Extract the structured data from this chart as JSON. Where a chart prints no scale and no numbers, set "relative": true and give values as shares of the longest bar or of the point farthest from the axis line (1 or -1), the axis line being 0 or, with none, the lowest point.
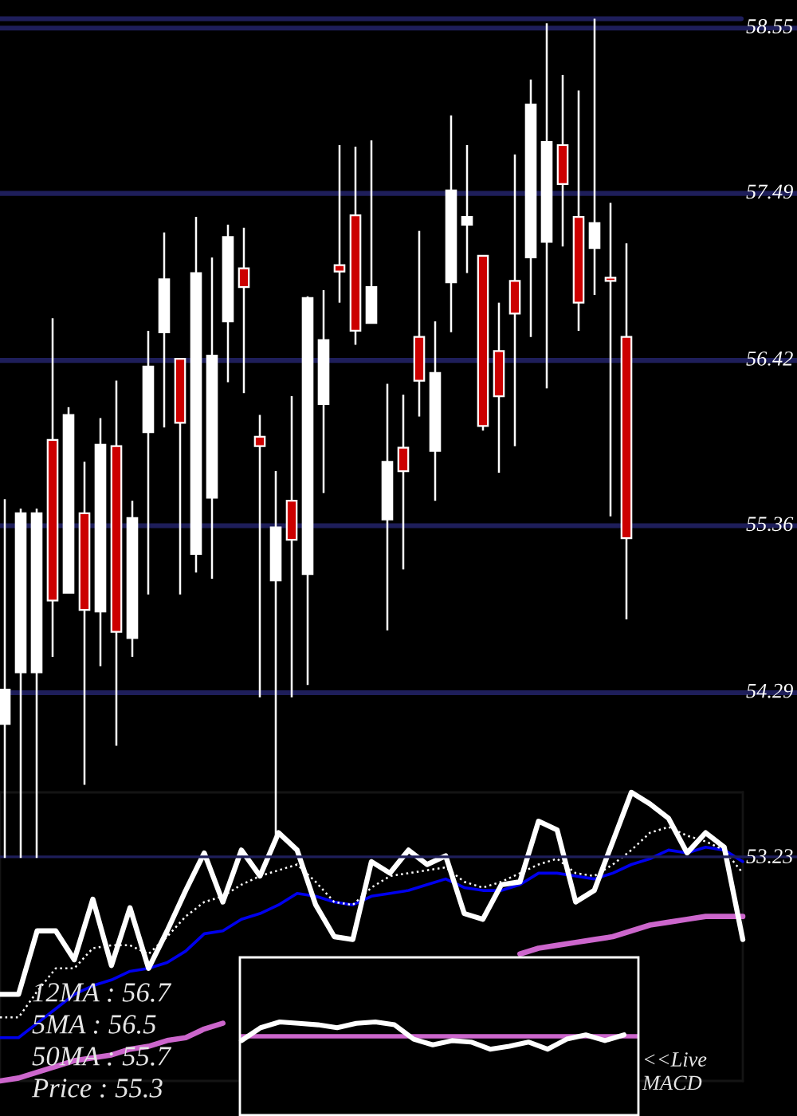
{
  "chart_data": [
    {
      "type": "candlestick",
      "categories": [
        null,
        null,
        null,
        null,
        null,
        null,
        null,
        null,
        null,
        null,
        null,
        null,
        null,
        null,
        null,
        null,
        null,
        null,
        null,
        null,
        null,
        null,
        null,
        null,
        null,
        null,
        null,
        null,
        null,
        null,
        null,
        null,
        null,
        null,
        null,
        null,
        null,
        null,
        null,
        null
      ],
      "ohlc": [
        [
          54.09,
          55.53,
          53.23,
          54.31
        ],
        [
          54.42,
          55.47,
          53.23,
          55.44
        ],
        [
          54.42,
          55.47,
          53.23,
          55.44
        ],
        [
          55.91,
          56.69,
          54.52,
          54.88
        ],
        [
          54.93,
          56.12,
          54.93,
          56.07
        ],
        [
          55.44,
          55.77,
          53.7,
          54.82
        ],
        [
          54.81,
          56.05,
          54.46,
          55.88
        ],
        [
          55.87,
          56.29,
          53.95,
          54.68
        ],
        [
          54.64,
          55.52,
          54.52,
          55.41
        ],
        [
          55.96,
          56.61,
          54.92,
          56.38
        ],
        [
          56.6,
          57.24,
          55.99,
          56.94
        ],
        [
          56.43,
          56.43,
          54.92,
          56.02
        ],
        [
          55.18,
          57.34,
          55.06,
          56.98
        ],
        [
          55.54,
          57.08,
          55.02,
          56.45
        ],
        [
          56.67,
          57.29,
          56.28,
          57.21
        ],
        [
          57.01,
          57.27,
          56.21,
          56.89
        ],
        [
          55.93,
          56.07,
          54.26,
          55.87
        ],
        [
          55.01,
          55.71,
          53.37,
          55.35
        ],
        [
          55.52,
          56.19,
          54.26,
          55.27
        ],
        [
          55.05,
          56.83,
          54.34,
          56.82
        ],
        [
          56.14,
          56.87,
          55.57,
          56.55
        ],
        [
          57.03,
          57.8,
          56.79,
          56.99
        ],
        [
          57.35,
          57.79,
          56.52,
          56.61
        ],
        [
          56.66,
          57.83,
          56.66,
          56.89
        ],
        [
          55.4,
          56.27,
          54.69,
          55.77
        ],
        [
          55.86,
          56.2,
          55.08,
          55.71
        ],
        [
          56.57,
          57.25,
          56.06,
          56.29
        ],
        [
          55.84,
          56.67,
          55.52,
          56.34
        ],
        [
          56.92,
          57.99,
          56.6,
          57.51
        ],
        [
          57.29,
          57.8,
          56.98,
          57.34
        ],
        [
          57.09,
          57.09,
          55.97,
          56.0
        ],
        [
          56.48,
          56.79,
          55.7,
          56.19
        ],
        [
          56.93,
          57.74,
          55.87,
          56.72
        ],
        [
          57.08,
          58.22,
          56.57,
          58.06
        ],
        [
          57.18,
          58.58,
          56.24,
          57.82
        ],
        [
          57.8,
          58.25,
          57.15,
          57.55
        ],
        [
          57.34,
          58.15,
          56.61,
          56.79
        ],
        [
          57.14,
          58.61,
          56.84,
          57.3
        ],
        [
          56.95,
          57.43,
          55.42,
          56.93
        ],
        [
          56.57,
          57.17,
          54.76,
          55.28
        ]
      ],
      "colors": [
        "#ffffff",
        "#ffffff",
        "#ffffff",
        "#cc0000",
        "#ffffff",
        "#cc0000",
        "#ffffff",
        "#cc0000",
        "#ffffff",
        "#ffffff",
        "#ffffff",
        "#cc0000",
        "#ffffff",
        "#ffffff",
        "#ffffff",
        "#cc0000",
        "#cc0000",
        "#ffffff",
        "#cc0000",
        "#ffffff",
        "#ffffff",
        "#cc0000",
        "#cc0000",
        "#ffffff",
        "#ffffff",
        "#cc0000",
        "#cc0000",
        "#ffffff",
        "#ffffff",
        "#ffffff",
        "#cc0000",
        "#cc0000",
        "#cc0000",
        "#ffffff",
        "#ffffff",
        "#cc0000",
        "#cc0000",
        "#ffffff",
        "#cc0000",
        "#cc0000"
      ],
      "ylim": [
        53.23,
        58.73
      ],
      "yticks": [
        53.23,
        54.29,
        55.36,
        56.42,
        57.49,
        58.55
      ],
      "grid": "y",
      "tick_labels": "y",
      "ref_lines": [
        {
          "axis": "y",
          "value": 58.61,
          "color": "#1e1e5a"
        }
      ]
    },
    {
      "type": "line",
      "relative": true,
      "tick_labels": false,
      "categories": [
        null,
        null,
        null,
        null,
        null,
        null,
        null,
        null,
        null,
        null,
        null,
        null,
        null,
        null,
        null,
        null,
        null,
        null,
        null,
        null,
        null,
        null,
        null,
        null,
        null,
        null,
        null,
        null,
        null,
        null,
        null,
        null,
        null,
        null,
        null,
        null,
        null,
        null,
        null,
        null,
        null
      ],
      "series": [
        {
          "color": "#cc66cc",
          "line_style": "solid",
          "values": [
            0.0,
            0.01,
            0.03,
            0.05,
            0.07,
            0.08,
            0.09,
            0.11,
            0.12,
            0.14,
            0.15,
            0.18,
            0.2,
            null,
            null,
            null,
            null,
            null,
            null,
            null,
            null,
            null,
            null,
            null,
            null,
            null,
            null,
            null,
            0.44,
            0.46,
            0.47,
            0.48,
            0.49,
            0.5,
            0.52,
            0.54,
            0.55,
            0.56,
            0.57,
            0.57,
            0.57
          ]
        },
        {
          "color": "#0000ee",
          "line_style": "solid",
          "values": [
            0.15,
            0.15,
            0.2,
            0.25,
            0.3,
            0.33,
            0.35,
            0.38,
            0.39,
            0.41,
            0.45,
            0.51,
            0.52,
            0.56,
            0.58,
            0.61,
            0.65,
            0.64,
            0.62,
            0.61,
            0.64,
            0.65,
            0.66,
            0.68,
            0.7,
            0.67,
            0.66,
            0.66,
            0.68,
            0.72,
            0.72,
            0.71,
            0.7,
            0.72,
            0.75,
            0.77,
            0.8,
            0.79,
            0.81,
            0.8,
            0.76
          ]
        },
        {
          "color": "#ffffff",
          "line_style": "dotted",
          "values": [
            0.22,
            0.22,
            0.31,
            0.39,
            0.39,
            0.46,
            0.47,
            0.47,
            0.44,
            0.5,
            0.57,
            0.62,
            0.64,
            0.68,
            0.71,
            0.73,
            0.75,
            0.69,
            0.62,
            0.61,
            0.67,
            0.71,
            0.72,
            0.73,
            0.74,
            0.69,
            0.67,
            0.69,
            0.72,
            0.75,
            0.77,
            0.72,
            0.71,
            0.75,
            0.8,
            0.86,
            0.88,
            0.85,
            0.83,
            0.8,
            0.72
          ]
        },
        {
          "color": "#ffffff",
          "line_style": "solid",
          "values": [
            0.3,
            0.3,
            0.52,
            0.52,
            0.42,
            0.63,
            0.4,
            0.6,
            0.39,
            0.52,
            0.66,
            0.79,
            0.62,
            0.8,
            0.71,
            0.86,
            0.8,
            0.61,
            0.5,
            0.49,
            0.76,
            0.72,
            0.8,
            0.75,
            0.78,
            0.58,
            0.56,
            0.68,
            0.69,
            0.9,
            0.87,
            0.62,
            0.66,
            0.83,
            1.0,
            0.96,
            0.91,
            0.79,
            0.86,
            0.81,
            0.49
          ]
        }
      ],
      "annotations": [
        "12MA : 56.7",
        "5MA : 56.5",
        "50MA : 55.7",
        "Price : 55.3"
      ]
    },
    {
      "type": "line",
      "relative": true,
      "tick_labels": false,
      "categories": [
        null,
        null,
        null,
        null,
        null,
        null,
        null,
        null,
        null,
        null,
        null,
        null,
        null,
        null,
        null,
        null,
        null,
        null,
        null,
        null,
        null
      ],
      "series": [
        {
          "color": "#ffffff",
          "line_style": "solid",
          "values": [
            -0.3,
            0.6,
            1.0,
            0.9,
            0.8,
            0.6,
            0.9,
            1.0,
            0.8,
            -0.2,
            -0.6,
            -0.3,
            -0.4,
            -0.9,
            -0.7,
            -0.4,
            -0.9,
            -0.2,
            0.1,
            -0.3,
            0.1
          ]
        }
      ],
      "ref_lines": [
        {
          "axis": "y",
          "value": 0,
          "color": "#cc66cc"
        }
      ],
      "annotations": [
        "<<Live\nMACD"
      ]
    }
  ]
}
